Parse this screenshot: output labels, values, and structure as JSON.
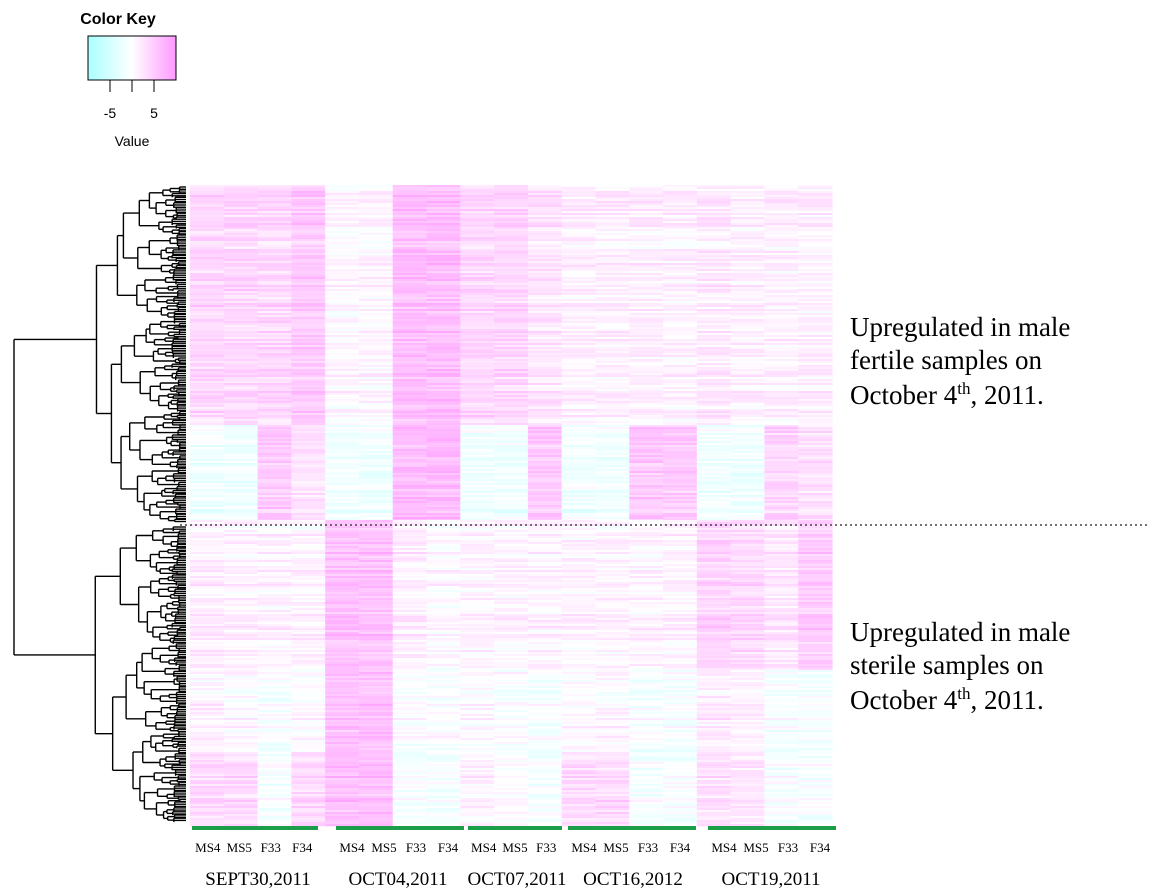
{
  "chart_data": {
    "type": "heatmap",
    "color_key": {
      "title": "Color Key",
      "axis_label": "Value",
      "ticks": [
        -5,
        5
      ],
      "tick_labels": [
        "-5",
        "5"
      ],
      "range": [
        -8,
        8
      ],
      "colors": {
        "low": "#aaffff",
        "mid": "#ffffff",
        "high": "#ff99ff"
      }
    },
    "columns": [
      "MS4",
      "MS5",
      "F33",
      "F34",
      "MS4",
      "MS5",
      "F33",
      "F34",
      "MS4",
      "MS5",
      "F33",
      "MS4",
      "MS5",
      "F33",
      "F34",
      "MS4",
      "MS5",
      "F33",
      "F34"
    ],
    "groups": [
      {
        "label": "SEPT30,2011",
        "columns": [
          "MS4",
          "MS5",
          "F33",
          "F34"
        ]
      },
      {
        "label": "OCT04,2011",
        "columns": [
          "MS4",
          "MS5",
          "F33",
          "F34"
        ]
      },
      {
        "label": "OCT07,2011",
        "columns": [
          "MS4",
          "MS5",
          "F33"
        ]
      },
      {
        "label": "OCT16,2012",
        "columns": [
          "MS4",
          "MS5",
          "F33",
          "F34"
        ]
      },
      {
        "label": "OCT19,2011",
        "columns": [
          "MS4",
          "MS5",
          "F33",
          "F34"
        ]
      }
    ],
    "group_bar_color": "#1a9e4a",
    "row_clusters": [
      {
        "name": "upper",
        "block_values": [
          3,
          3,
          3,
          4,
          0.5,
          0.5,
          5,
          5,
          3,
          3,
          2,
          1,
          1,
          1,
          1,
          1.5,
          1,
          1,
          1
        ]
      },
      {
        "name": "upper-mid",
        "block_values": [
          -1.5,
          -1.5,
          4,
          2,
          -1.5,
          -1.5,
          5,
          5,
          -1.5,
          -1.5,
          4,
          -1.5,
          -1.5,
          4,
          4,
          -1.5,
          -1.5,
          3,
          2
        ]
      },
      {
        "name": "lower-top",
        "block_values": [
          1.5,
          1,
          1,
          1,
          5,
          5,
          1.5,
          0.5,
          1,
          1,
          1,
          1,
          1,
          1,
          1,
          3.5,
          3,
          2,
          4
        ]
      },
      {
        "name": "lower-bottom",
        "block_values": [
          1,
          0.5,
          -0.5,
          0.5,
          5,
          5,
          0,
          0,
          0.5,
          0,
          -0.5,
          0.5,
          0.5,
          -0.5,
          -0.5,
          1.5,
          1,
          -0.5,
          -0.5
        ]
      },
      {
        "name": "lower-tail",
        "block_values": [
          3,
          3,
          -0.5,
          3,
          5,
          5,
          -0.5,
          -0.5,
          1,
          0.5,
          -0.5,
          3,
          3,
          -0.5,
          -0.5,
          2.5,
          2,
          -0.5,
          -0.5
        ]
      }
    ],
    "annotations": [
      {
        "lines": [
          "Upregulated in male",
          "fertile samples on",
          "October 4",
          "th",
          ", 2011."
        ]
      },
      {
        "lines": [
          "Upregulated in male",
          "sterile samples on",
          "October 4",
          "th",
          ", 2011."
        ]
      }
    ],
    "separator": "dotted",
    "row_dendrogram": true
  }
}
